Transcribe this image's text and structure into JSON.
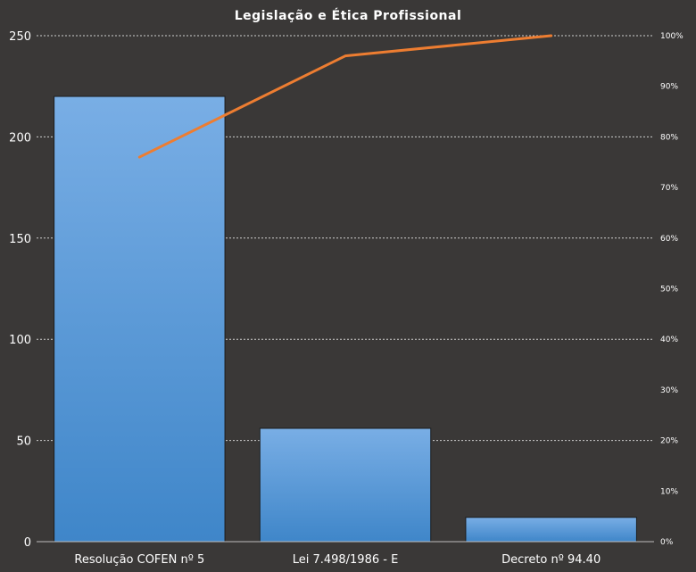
{
  "chart_data": {
    "type": "bar",
    "title": "Legislação e Ética Profissional",
    "categories": [
      "Resolução COFEN nº 5",
      "Lei 7.498/1986 - E",
      "Decreto nº 94.40"
    ],
    "series": [
      {
        "type": "bar",
        "axis": "left",
        "values": [
          220,
          56,
          12
        ]
      },
      {
        "type": "line",
        "axis": "right",
        "values": [
          76,
          96,
          100
        ]
      }
    ],
    "ylim": [
      0,
      250
    ],
    "yticks": [
      "0",
      "50",
      "100",
      "150",
      "200",
      "250"
    ],
    "y2lim": [
      0,
      100
    ],
    "y2ticks": [
      "0%",
      "10%",
      "20%",
      "30%",
      "40%",
      "50%",
      "60%",
      "70%",
      "80%",
      "90%",
      "100%"
    ],
    "grid": true,
    "legend": "none",
    "colors": {
      "background": "#3a3837",
      "bar_top": "#79aee5",
      "bar_bottom": "#3f86c9",
      "line": "#ed7d31"
    }
  }
}
